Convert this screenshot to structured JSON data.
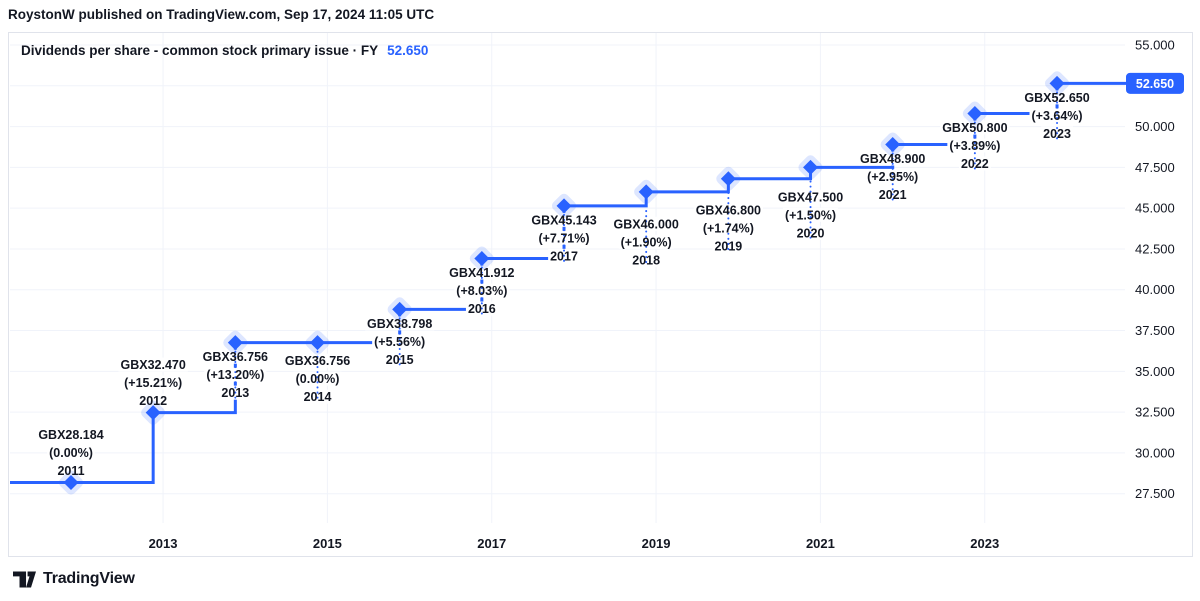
{
  "header": {
    "attribution": "RoystonW published on TradingView.com, Sep 17, 2024 11:05 UTC"
  },
  "legend": {
    "title": "Dividends per share - common stock primary issue · FY",
    "value": "52.650"
  },
  "price_scale": {
    "badge": "52.650",
    "ticks": [
      "55.000",
      "50.000",
      "47.500",
      "45.000",
      "42.500",
      "40.000",
      "37.500",
      "35.000",
      "32.500",
      "30.000",
      "27.500"
    ]
  },
  "time_scale": {
    "ticks": [
      "2013",
      "2015",
      "2017",
      "2019",
      "2021",
      "2023"
    ]
  },
  "footer": {
    "brand": "TradingView"
  },
  "colors": {
    "accent": "#2962ff",
    "text": "#131722",
    "grid": "#f0f3fa",
    "border": "#e0e3eb",
    "background": "#ffffff",
    "badge_text": "#ffffff",
    "halo_opacity": 0.16
  },
  "chart_data": {
    "type": "line",
    "subtype": "step",
    "title": "Dividends per share - common stock primary issue · FY",
    "unit": "GBX",
    "legend_position": "top-left",
    "grid": true,
    "ylim": [
      26.5,
      55.75
    ],
    "y_grid_values": [
      27.5,
      30.0,
      32.5,
      35.0,
      37.5,
      40.0,
      42.5,
      45.0,
      47.5,
      50.0,
      52.5,
      55.0
    ],
    "x_tick_years": [
      2013,
      2015,
      2017,
      2019,
      2021,
      2023
    ],
    "points": [
      {
        "year": 2011,
        "value": 28.184,
        "label_lines": [
          "GBX28.184",
          "(0.00%)",
          "2011"
        ],
        "label_side": "above"
      },
      {
        "year": 2012,
        "value": 32.47,
        "label_lines": [
          "GBX32.470",
          "(+15.21%)",
          "2012"
        ],
        "label_side": "above"
      },
      {
        "year": 2013,
        "value": 36.756,
        "label_lines": [
          "GBX36.756",
          "(+13.20%)",
          "2013"
        ],
        "label_side": "below"
      },
      {
        "year": 2014,
        "value": 36.756,
        "label_lines": [
          "GBX36.756",
          "(0.00%)",
          "2014"
        ],
        "label_side": "below"
      },
      {
        "year": 2015,
        "value": 38.798,
        "label_lines": [
          "GBX38.798",
          "(+5.56%)",
          "2015"
        ],
        "label_side": "below"
      },
      {
        "year": 2016,
        "value": 41.912,
        "label_lines": [
          "GBX41.912",
          "(+8.03%)",
          "2016"
        ],
        "label_side": "below"
      },
      {
        "year": 2017,
        "value": 45.143,
        "label_lines": [
          "GBX45.143",
          "(+7.71%)",
          "2017"
        ],
        "label_side": "below"
      },
      {
        "year": 2018,
        "value": 46.0,
        "label_lines": [
          "GBX46.000",
          "(+1.90%)",
          "2018"
        ],
        "label_side": "below"
      },
      {
        "year": 2019,
        "value": 46.8,
        "label_lines": [
          "GBX46.800",
          "(+1.74%)",
          "2019"
        ],
        "label_side": "below"
      },
      {
        "year": 2020,
        "value": 47.5,
        "label_lines": [
          "GBX47.500",
          "(+1.50%)",
          "2020"
        ],
        "label_side": "below"
      },
      {
        "year": 2021,
        "value": 48.9,
        "label_lines": [
          "GBX48.900",
          "(+2.95%)",
          "2021"
        ],
        "label_side": "below"
      },
      {
        "year": 2022,
        "value": 50.8,
        "label_lines": [
          "GBX50.800",
          "(+3.89%)",
          "2022"
        ],
        "label_side": "below"
      },
      {
        "year": 2023,
        "value": 52.65,
        "label_lines": [
          "GBX52.650",
          "(+3.64%)",
          "2023"
        ],
        "label_side": "below"
      }
    ]
  }
}
